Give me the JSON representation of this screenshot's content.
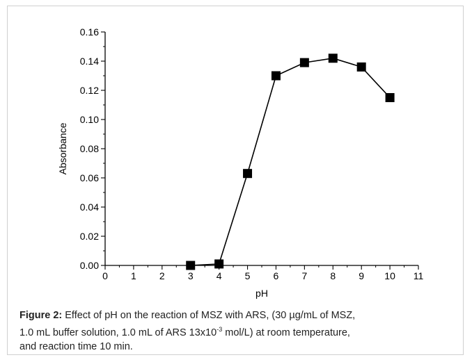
{
  "chart_data": {
    "type": "line",
    "xlabel": "pH",
    "ylabel": "Absorbance",
    "xlim": [
      0,
      11
    ],
    "ylim": [
      0,
      0.16
    ],
    "x_ticks": [
      0,
      1,
      2,
      3,
      4,
      5,
      6,
      7,
      8,
      9,
      10,
      11
    ],
    "y_ticks": [
      0.0,
      0.02,
      0.04,
      0.06,
      0.08,
      0.1,
      0.12,
      0.14,
      0.16
    ],
    "y_tick_labels": [
      "0.00",
      "0.02",
      "0.04",
      "0.06",
      "0.08",
      "0.10",
      "0.12",
      "0.14",
      "0.16"
    ],
    "grid": false,
    "marker": "square",
    "series": [
      {
        "x": [
          3,
          4,
          5,
          6,
          7,
          8,
          9,
          10
        ],
        "y": [
          0.0,
          0.001,
          0.063,
          0.13,
          0.139,
          0.142,
          0.136,
          0.115
        ],
        "color": "#000000"
      }
    ]
  },
  "caption": {
    "label": "Figure 2:",
    "line1": " Effect of pH on the reaction of MSZ with ARS, (30 µg/mL of MSZ,",
    "line2_a": "1.0 mL buffer solution, 1.0 mL of ARS 13x10",
    "line2_sup": "-3",
    "line2_b": " mol/L) at room temperature,",
    "line3": "and reaction time 10 min."
  }
}
